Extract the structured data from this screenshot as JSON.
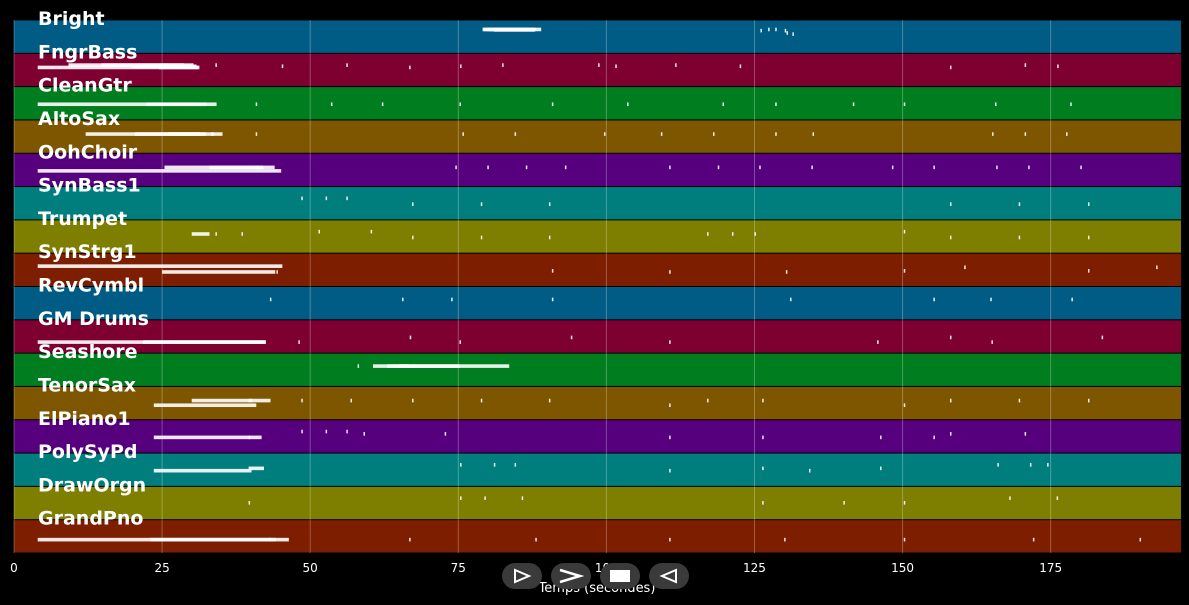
{
  "lanes": [
    {
      "label": "Bright",
      "color": "#005c84",
      "notes": [
        [
          79.1,
          87.6,
          0.2
        ],
        [
          80.1,
          88.1,
          0.2
        ],
        [
          81.0,
          87.9,
          0.22
        ],
        [
          79.3,
          89.0,
          0.2
        ],
        [
          126.0,
          87.9,
          0.25
        ],
        [
          127.3,
          88.4,
          0.2
        ],
        [
          128.5,
          89.3,
          0.2
        ],
        [
          130.1,
          91.0,
          0.25
        ],
        [
          130.4,
          94.5,
          0.35
        ],
        [
          131.4,
          95.7,
          0.4
        ]
      ]
    },
    {
      "label": "FngrBass",
      "color": "#7e0030",
      "notes": [
        [
          4.0,
          31.1,
          0.4
        ],
        [
          9.2,
          28.7,
          0.3
        ],
        [
          14.8,
          30.3,
          0.3
        ],
        [
          20.0,
          30.8,
          0.35
        ],
        [
          24.5,
          31.3,
          0.4
        ],
        [
          34.0,
          26.7,
          0.3
        ],
        [
          45.2,
          30.5,
          0.35
        ],
        [
          56.1,
          26.5,
          0.3
        ],
        [
          66.7,
          30.9,
          0.4
        ],
        [
          75.3,
          32.1,
          0.35
        ],
        [
          82.4,
          30.6,
          0.3
        ],
        [
          98.6,
          28.6,
          0.3
        ],
        [
          101.5,
          31.3,
          0.35
        ],
        [
          111.6,
          32.2,
          0.3
        ],
        [
          122.5,
          31.2,
          0.35
        ],
        [
          158.0,
          31.2,
          0.4
        ],
        [
          170.6,
          29.0,
          0.3
        ],
        [
          176.1,
          26.6,
          0.35
        ]
      ]
    },
    {
      "label": "CleanGtr",
      "color": "#007d1e",
      "notes": [
        [
          4.0,
          32.5,
          0.55
        ],
        [
          22.4,
          34.2,
          0.55
        ],
        [
          30.0,
          28.8,
          0.55
        ],
        [
          40.8,
          29.7,
          0.55
        ],
        [
          53.5,
          27.6,
          0.55
        ],
        [
          62.1,
          28.2,
          0.55
        ],
        [
          75.2,
          32.9,
          0.55
        ],
        [
          90.8,
          28.6,
          0.55
        ],
        [
          103.5,
          27.9,
          0.55
        ],
        [
          119.6,
          27.8,
          0.55
        ],
        [
          128.5,
          32.2,
          0.55
        ],
        [
          141.6,
          33.0,
          0.55
        ],
        [
          150.2,
          28.1,
          0.55
        ],
        [
          165.6,
          28.3,
          0.55
        ],
        [
          178.3,
          31.2,
          0.55
        ]
      ]
    },
    {
      "label": "AltoSax",
      "color": "#7e5600",
      "notes": [
        [
          12.1,
          33.7,
          0.4
        ],
        [
          20.4,
          32.4,
          0.4
        ],
        [
          26.0,
          31.4,
          0.4
        ],
        [
          33.3,
          35.2,
          0.4
        ],
        [
          40.8,
          33.2,
          0.4
        ],
        [
          75.7,
          34.0,
          0.4
        ],
        [
          84.5,
          30.9,
          0.4
        ],
        [
          99.6,
          32.9,
          0.4
        ],
        [
          109.2,
          31.1,
          0.4
        ],
        [
          118.0,
          35.9,
          0.4
        ],
        [
          128.5,
          33.1,
          0.4
        ],
        [
          134.8,
          30.0,
          0.4
        ],
        [
          165.1,
          33.6,
          0.4
        ],
        [
          170.6,
          32.1,
          0.4
        ],
        [
          177.6,
          34.4,
          0.4
        ]
      ]
    },
    {
      "label": "OohChoir",
      "color": "#56007e",
      "notes": [
        [
          4.0,
          45.1,
          0.55
        ],
        [
          25.4,
          41.4,
          0.4
        ],
        [
          33.0,
          44.0,
          0.4
        ],
        [
          40.7,
          42.1,
          0.4
        ],
        [
          74.5,
          40.2,
          0.4
        ],
        [
          79.9,
          42.4,
          0.4
        ],
        [
          86.4,
          41.0,
          0.4
        ],
        [
          93.0,
          42.4,
          0.4
        ],
        [
          110.6,
          43.4,
          0.4
        ],
        [
          118.8,
          42.2,
          0.4
        ],
        [
          125.8,
          42.0,
          0.4
        ],
        [
          134.6,
          43.1,
          0.4
        ],
        [
          148.2,
          41.6,
          0.4
        ],
        [
          155.2,
          43.1,
          0.4
        ],
        [
          165.8,
          42.4,
          0.4
        ],
        [
          171.2,
          40.6,
          0.4
        ],
        [
          180.0,
          42.4,
          0.4
        ]
      ]
    },
    {
      "label": "SynBass1",
      "color": "#007e7e",
      "notes": [
        [
          48.5,
          28.5,
          0.3
        ],
        [
          52.6,
          30.4,
          0.3
        ],
        [
          56.1,
          29.2,
          0.3
        ],
        [
          67.2,
          33.2,
          0.55
        ],
        [
          78.8,
          31.8,
          0.55
        ],
        [
          90.3,
          29.4,
          0.55
        ],
        [
          158.0,
          31.9,
          0.55
        ],
        [
          169.6,
          30.1,
          0.55
        ],
        [
          181.3,
          29.6,
          0.55
        ]
      ]
    },
    {
      "label": "Trumpet",
      "color": "#7e7e00",
      "notes": [
        [
          30.0,
          33.0,
          0.4
        ],
        [
          34.0,
          31.0,
          0.4
        ],
        [
          38.4,
          30.5,
          0.4
        ],
        [
          51.4,
          31.4,
          0.3
        ],
        [
          60.2,
          28.5,
          0.3
        ],
        [
          67.2,
          29.5,
          0.55
        ],
        [
          78.8,
          31.4,
          0.55
        ],
        [
          90.3,
          29.0,
          0.55
        ],
        [
          117.0,
          30.4,
          0.4
        ],
        [
          121.2,
          29.6,
          0.4
        ],
        [
          125.0,
          30.0,
          0.4
        ],
        [
          150.2,
          35.0,
          0.3
        ],
        [
          158.0,
          30.0,
          0.55
        ],
        [
          169.6,
          31.2,
          0.55
        ],
        [
          181.3,
          29.6,
          0.55
        ]
      ]
    },
    {
      "label": "SynStrg1",
      "color": "#7e1e00",
      "notes": [
        [
          4.0,
          45.3,
          0.35
        ],
        [
          25.0,
          44.1,
          0.6
        ],
        [
          44.3,
          40.8,
          0.6
        ],
        [
          90.8,
          47.2,
          0.55
        ],
        [
          110.6,
          45.0,
          0.6
        ],
        [
          130.3,
          37.8,
          0.6
        ],
        [
          150.2,
          45.9,
          0.55
        ],
        [
          160.4,
          41.1,
          0.4
        ],
        [
          181.3,
          45.5,
          0.55
        ],
        [
          192.8,
          44.2,
          0.4
        ]
      ]
    },
    {
      "label": "RevCymbl",
      "color": "#005c84",
      "notes": [
        [
          43.2,
          41.0,
          0.35
        ],
        [
          65.5,
          41.4,
          0.35
        ],
        [
          73.8,
          45.0,
          0.35
        ],
        [
          90.8,
          41.7,
          0.35
        ],
        [
          131.0,
          45.3,
          0.35
        ],
        [
          155.2,
          44.1,
          0.35
        ],
        [
          164.8,
          45.1,
          0.35
        ],
        [
          178.5,
          42.6,
          0.35
        ]
      ]
    },
    {
      "label": "GM Drums",
      "color": "#7e0030",
      "notes": [
        [
          4.0,
          42.5,
          0.75
        ],
        [
          21.8,
          42.5,
          0.75
        ],
        [
          48.0,
          42.1,
          0.75
        ],
        [
          66.8,
          13.4,
          0.55
        ],
        [
          75.2,
          43.0,
          0.75
        ],
        [
          94.0,
          13.8,
          0.55
        ],
        [
          110.6,
          42.6,
          0.75
        ],
        [
          145.7,
          45.8,
          0.75
        ],
        [
          158.0,
          13.4,
          0.55
        ],
        [
          165.0,
          43.2,
          0.75
        ],
        [
          183.6,
          13.3,
          0.55
        ]
      ]
    },
    {
      "label": "Seashore",
      "color": "#007d1e",
      "notes": [
        [
          58.0,
          58.2,
          0.35
        ],
        [
          60.6,
          66.7,
          0.35
        ],
        [
          63.0,
          75.2,
          0.35
        ],
        [
          65.0,
          83.6,
          0.35
        ]
      ]
    },
    {
      "label": "TenorSax",
      "color": "#7e5600",
      "notes": [
        [
          23.6,
          40.9,
          0.6
        ],
        [
          30.0,
          43.3,
          0.4
        ],
        [
          39.6,
          40.2,
          0.4
        ],
        [
          48.5,
          39.1,
          0.4
        ],
        [
          56.8,
          40.5,
          0.4
        ],
        [
          67.2,
          40.0,
          0.4
        ],
        [
          78.8,
          42.4,
          0.4
        ],
        [
          90.3,
          39.2,
          0.4
        ],
        [
          110.6,
          42.0,
          0.6
        ],
        [
          117.0,
          44.6,
          0.4
        ],
        [
          126.3,
          42.0,
          0.4
        ],
        [
          150.2,
          42.8,
          0.6
        ],
        [
          158.0,
          40.1,
          0.4
        ],
        [
          169.6,
          41.9,
          0.4
        ],
        [
          181.3,
          39.5,
          0.4
        ]
      ]
    },
    {
      "label": "ElPiano1",
      "color": "#56007e",
      "notes": [
        [
          23.6,
          41.8,
          0.55
        ],
        [
          39.6,
          39.5,
          0.55
        ],
        [
          48.5,
          40.2,
          0.3
        ],
        [
          52.6,
          40.5,
          0.3
        ],
        [
          56.1,
          41.7,
          0.3
        ],
        [
          59.0,
          24.9,
          0.4
        ],
        [
          72.7,
          27.9,
          0.4
        ],
        [
          110.6,
          41.5,
          0.55
        ],
        [
          126.3,
          33.4,
          0.55
        ],
        [
          146.2,
          30.9,
          0.55
        ],
        [
          155.2,
          40.6,
          0.55
        ],
        [
          158.0,
          30.8,
          0.4
        ],
        [
          170.6,
          29.9,
          0.4
        ]
      ]
    },
    {
      "label": "PolySyPd",
      "color": "#007e7e",
      "notes": [
        [
          23.6,
          40.1,
          0.55
        ],
        [
          39.6,
          42.2,
          0.45
        ],
        [
          75.3,
          44.5,
          0.3
        ],
        [
          81.0,
          42.5,
          0.3
        ],
        [
          84.5,
          42.6,
          0.3
        ],
        [
          110.6,
          41.7,
          0.55
        ],
        [
          126.3,
          43.8,
          0.45
        ],
        [
          134.2,
          37.8,
          0.55
        ],
        [
          146.2,
          37.9,
          0.45
        ],
        [
          166.0,
          45.1,
          0.3
        ],
        [
          171.5,
          43.8,
          0.3
        ],
        [
          174.4,
          43.8,
          0.3
        ]
      ]
    },
    {
      "label": "DrawOrgn",
      "color": "#7e7e00",
      "notes": [
        [
          39.6,
          39.6,
          0.5
        ],
        [
          75.3,
          46.3,
          0.3
        ],
        [
          79.4,
          44.6,
          0.3
        ],
        [
          85.7,
          42.1,
          0.3
        ],
        [
          126.3,
          39.9,
          0.5
        ],
        [
          140.0,
          40.2,
          0.5
        ],
        [
          150.2,
          43.9,
          0.5
        ],
        [
          168.0,
          45.6,
          0.3
        ],
        [
          176.0,
          41.5,
          0.3
        ]
      ]
    },
    {
      "label": "GrandPno",
      "color": "#7e1e00",
      "notes": [
        [
          4.0,
          46.4,
          0.65
        ],
        [
          23.0,
          43.4,
          0.65
        ],
        [
          43.0,
          44.2,
          0.65
        ],
        [
          66.7,
          43.2,
          0.65
        ],
        [
          88.0,
          43.0,
          0.65
        ],
        [
          110.6,
          40.6,
          0.65
        ],
        [
          130.0,
          40.9,
          0.65
        ],
        [
          150.2,
          40.4,
          0.65
        ],
        [
          172.0,
          42.6,
          0.65
        ],
        [
          190.0,
          44.5,
          0.65
        ]
      ]
    }
  ],
  "axis": {
    "xmax": 197,
    "ticks": [
      "0",
      "25",
      "50",
      "75",
      "100",
      "125",
      "150",
      "175"
    ],
    "tick_values": [
      0,
      25,
      50,
      75,
      100,
      125,
      150,
      175
    ],
    "title": "Temps (secondes)"
  },
  "controls": {
    "play": "play-icon",
    "forward": "chevron-right-icon",
    "stop": "stop-icon",
    "rewind": "rewind-icon"
  },
  "colors": {
    "background": "#000000",
    "note": "#ffffff",
    "grid": "#ffffff"
  }
}
